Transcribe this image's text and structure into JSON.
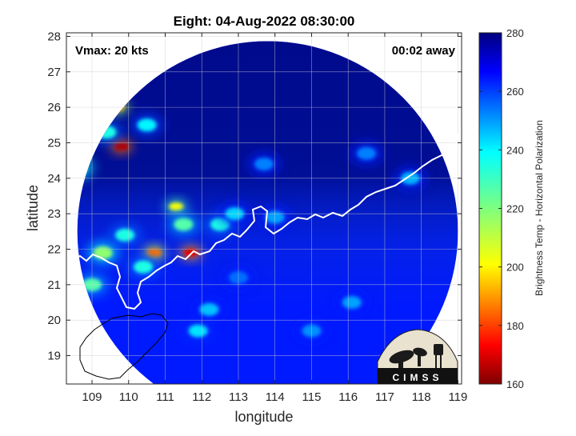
{
  "chart_data": {
    "type": "heatmap",
    "title": "Eight: 04-Aug-2022 08:30:00",
    "xlabel": "longitude",
    "ylabel": "latitude",
    "xlim": [
      108.3,
      119.1
    ],
    "ylim": [
      18.2,
      28.1
    ],
    "xticks": [
      109,
      110,
      111,
      112,
      113,
      114,
      115,
      116,
      117,
      118,
      119
    ],
    "yticks": [
      19,
      20,
      21,
      22,
      23,
      24,
      25,
      26,
      27,
      28
    ],
    "grid": true,
    "annotations": {
      "vmax": "Vmax: 20 kts",
      "away": "00:02 away"
    },
    "colorbar": {
      "label": "Brightness Temp - Horizontal Polarization",
      "range": [
        160,
        280
      ],
      "ticks": [
        160,
        180,
        200,
        220,
        240,
        260,
        280
      ],
      "colormap": "jet"
    },
    "swath": {
      "center": [
        113.8,
        22.5
      ],
      "radius_deg": 5.2,
      "background_value": 262,
      "dark_top_value": 278
    },
    "features": [
      {
        "lon": 109.8,
        "lat": 24.9,
        "value": 166
      },
      {
        "lon": 109.7,
        "lat": 26.0,
        "value": 195
      },
      {
        "lon": 109.4,
        "lat": 25.3,
        "value": 232
      },
      {
        "lon": 110.7,
        "lat": 21.9,
        "value": 188
      },
      {
        "lon": 111.7,
        "lat": 21.9,
        "value": 172
      },
      {
        "lon": 111.3,
        "lat": 23.2,
        "value": 205
      },
      {
        "lon": 111.5,
        "lat": 22.7,
        "value": 225
      },
      {
        "lon": 112.5,
        "lat": 22.7,
        "value": 232
      },
      {
        "lon": 112.9,
        "lat": 23.0,
        "value": 240
      },
      {
        "lon": 109.3,
        "lat": 21.9,
        "value": 218
      },
      {
        "lon": 108.6,
        "lat": 24.3,
        "value": 215
      },
      {
        "lon": 110.4,
        "lat": 21.5,
        "value": 232
      },
      {
        "lon": 109.0,
        "lat": 21.0,
        "value": 225
      },
      {
        "lon": 109.9,
        "lat": 22.4,
        "value": 232
      },
      {
        "lon": 111.9,
        "lat": 19.7,
        "value": 238
      },
      {
        "lon": 112.2,
        "lat": 20.3,
        "value": 242
      },
      {
        "lon": 116.1,
        "lat": 20.5,
        "value": 246
      },
      {
        "lon": 115.0,
        "lat": 19.7,
        "value": 248
      },
      {
        "lon": 114.0,
        "lat": 22.9,
        "value": 246
      },
      {
        "lon": 113.7,
        "lat": 24.4,
        "value": 250
      },
      {
        "lon": 116.5,
        "lat": 24.7,
        "value": 250
      },
      {
        "lon": 117.7,
        "lat": 24.0,
        "value": 244
      },
      {
        "lon": 113.0,
        "lat": 21.2,
        "value": 252
      },
      {
        "lon": 110.5,
        "lat": 25.5,
        "value": 236
      }
    ]
  },
  "logo": {
    "text": "CIMSS"
  }
}
